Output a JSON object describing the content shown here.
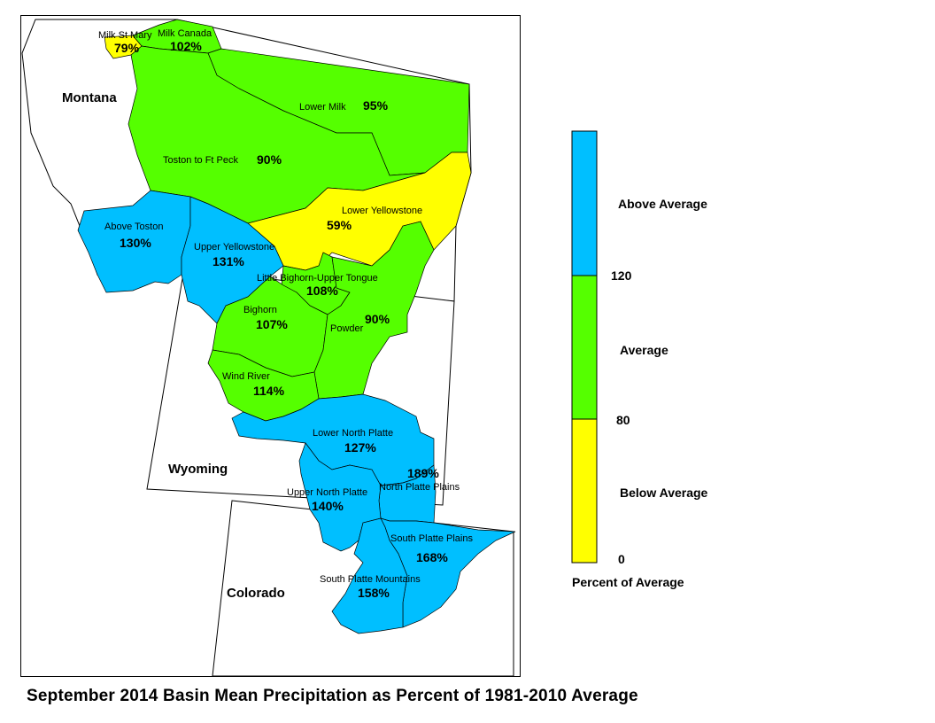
{
  "title": "September 2014 Basin Mean Precipitation as Percent of 1981-2010 Average",
  "colors": {
    "above": "#00bfff",
    "average": "#55ff00",
    "below": "#ffff00",
    "outline": "#000000"
  },
  "states": [
    {
      "id": "montana",
      "label": "Montana"
    },
    {
      "id": "wyoming",
      "label": "Wyoming"
    },
    {
      "id": "colorado",
      "label": "Colorado"
    }
  ],
  "basins": [
    {
      "id": "milk-st-mary",
      "name": "Milk St Mary",
      "pct": "79%",
      "category": "below"
    },
    {
      "id": "milk-canada",
      "name": "Milk Canada",
      "pct": "102%",
      "category": "average"
    },
    {
      "id": "lower-milk",
      "name": "Lower Milk",
      "pct": "95%",
      "category": "average"
    },
    {
      "id": "toston-ft-peck",
      "name": "Toston to Ft Peck",
      "pct": "90%",
      "category": "average"
    },
    {
      "id": "lower-yellowstone",
      "name": "Lower Yellowstone",
      "pct": "59%",
      "category": "below"
    },
    {
      "id": "above-toston",
      "name": "Above Toston",
      "pct": "130%",
      "category": "above"
    },
    {
      "id": "upper-yellowstone",
      "name": "Upper Yellowstone",
      "pct": "131%",
      "category": "above"
    },
    {
      "id": "little-bighorn",
      "name": "Little Bighorn-Upper Tongue",
      "pct": "108%",
      "category": "average"
    },
    {
      "id": "bighorn",
      "name": "Bighorn",
      "pct": "107%",
      "category": "average"
    },
    {
      "id": "powder",
      "name": "Powder",
      "pct": "90%",
      "category": "average"
    },
    {
      "id": "wind-river",
      "name": "Wind River",
      "pct": "114%",
      "category": "average"
    },
    {
      "id": "lower-north-platte",
      "name": "Lower North Platte",
      "pct": "127%",
      "category": "above"
    },
    {
      "id": "north-platte-plains",
      "name": "North Platte Plains",
      "pct": "189%",
      "category": "above"
    },
    {
      "id": "upper-north-platte",
      "name": "Upper North Platte",
      "pct": "140%",
      "category": "above"
    },
    {
      "id": "south-platte-plains",
      "name": "South Platte Plains",
      "pct": "168%",
      "category": "above"
    },
    {
      "id": "south-platte-mountains",
      "name": "South Platte Mountains",
      "pct": "158%",
      "category": "above"
    }
  ],
  "legend": {
    "title": "Percent of Average",
    "classes": [
      {
        "label": "Above Average",
        "color": "#00bfff",
        "range": "120 and above"
      },
      {
        "label": "Average",
        "color": "#55ff00",
        "range": "80 to 120"
      },
      {
        "label": "Below Average",
        "color": "#ffff00",
        "range": "0 to 80"
      }
    ],
    "breaks": [
      "120",
      "80",
      "0"
    ]
  }
}
